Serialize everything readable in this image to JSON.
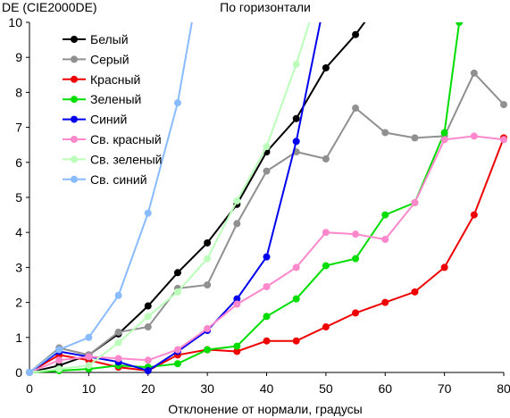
{
  "chart_data": {
    "type": "line",
    "title": "По горизонтали",
    "ylabel": "DE (CIE2000DE)",
    "xlabel": "Отклонение от нормали, градусы",
    "xlim": [
      0,
      80
    ],
    "ylim": [
      0,
      10
    ],
    "xticks": [
      0,
      10,
      20,
      30,
      40,
      50,
      60,
      70,
      80
    ],
    "yticks": [
      0,
      1,
      2,
      3,
      4,
      5,
      6,
      7,
      8,
      9,
      10
    ],
    "grid": false,
    "legend_position": "top-left",
    "series": [
      {
        "name": "Белый",
        "color": "#000000",
        "x": [
          0,
          5,
          10,
          15,
          20,
          25,
          30,
          35,
          40,
          45,
          50,
          55,
          60
        ],
        "y": [
          0,
          0.2,
          0.5,
          1.1,
          1.9,
          2.85,
          3.7,
          4.8,
          6.3,
          7.25,
          8.7,
          9.65,
          10.8
        ]
      },
      {
        "name": "Серый",
        "color": "#909090",
        "x": [
          0,
          5,
          10,
          15,
          20,
          25,
          30,
          35,
          40,
          45,
          50,
          55,
          60,
          65,
          70,
          75,
          80
        ],
        "y": [
          0,
          0.7,
          0.5,
          1.15,
          1.3,
          2.4,
          2.5,
          4.25,
          5.75,
          6.3,
          6.1,
          7.55,
          6.85,
          6.7,
          6.75,
          8.55,
          7.65
        ]
      },
      {
        "name": "Красный",
        "color": "#ee0000",
        "x": [
          0,
          5,
          10,
          15,
          20,
          25,
          30,
          35,
          40,
          45,
          50,
          55,
          60,
          65,
          70,
          75,
          80
        ],
        "y": [
          0,
          0.5,
          0.35,
          0.15,
          0.05,
          0.5,
          0.65,
          0.6,
          0.9,
          0.9,
          1.3,
          1.7,
          2.0,
          2.3,
          3.0,
          4.5,
          6.7
        ]
      },
      {
        "name": "Зеленый",
        "color": "#00dd00",
        "x": [
          0,
          5,
          10,
          15,
          20,
          25,
          30,
          35,
          40,
          45,
          50,
          55,
          60,
          65,
          70,
          72.5
        ],
        "y": [
          0,
          0.05,
          0.1,
          0.2,
          0.15,
          0.25,
          0.65,
          0.75,
          1.6,
          2.1,
          3.05,
          3.25,
          4.5,
          4.85,
          6.85,
          10
        ]
      },
      {
        "name": "Синий",
        "color": "#0000ee",
        "x": [
          0,
          5,
          10,
          15,
          20,
          25,
          30,
          35,
          40,
          45,
          50
        ],
        "y": [
          0,
          0.6,
          0.45,
          0.3,
          0.05,
          0.6,
          1.2,
          2.1,
          3.3,
          6.6,
          10.8
        ]
      },
      {
        "name": "Св. красный",
        "color": "#ff88cc",
        "x": [
          0,
          5,
          10,
          15,
          20,
          25,
          30,
          35,
          40,
          45,
          50,
          55,
          60,
          65,
          70,
          75,
          80
        ],
        "y": [
          0,
          0.35,
          0.45,
          0.4,
          0.35,
          0.65,
          1.25,
          1.95,
          2.45,
          3.0,
          4.0,
          3.95,
          3.8,
          4.85,
          6.65,
          6.75,
          6.65
        ]
      },
      {
        "name": "Св. зеленый",
        "color": "#bbffbb",
        "x": [
          0,
          5,
          10,
          15,
          20,
          25,
          30,
          35,
          40,
          45,
          50
        ],
        "y": [
          0,
          0.1,
          0.2,
          0.85,
          1.6,
          2.3,
          3.25,
          4.9,
          6.45,
          8.8,
          11.5
        ]
      },
      {
        "name": "Св. синий",
        "color": "#88bbff",
        "x": [
          0,
          5,
          10,
          15,
          20,
          25,
          30
        ],
        "y": [
          0,
          0.65,
          1.0,
          2.2,
          4.55,
          7.7,
          12.5
        ]
      }
    ]
  }
}
